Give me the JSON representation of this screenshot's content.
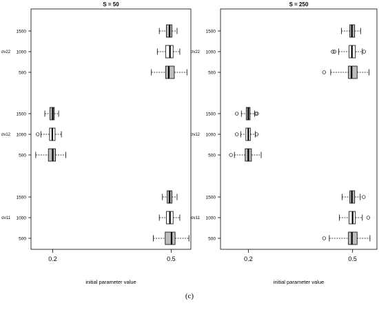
{
  "caption": "(c)",
  "chart_data": [
    {
      "type": "boxplot",
      "title": "S = 50",
      "xlabel": "initial parameter value",
      "xticks": [
        0.2,
        0.5
      ],
      "xlim": [
        0.145,
        0.55
      ],
      "groups": [
        {
          "label": "σv22",
          "rows": [
            {
              "n": "1500",
              "fill": "#bdbdbd",
              "whisker_low": 0.47,
              "q1": 0.488,
              "median": 0.496,
              "q3": 0.502,
              "whisker_high": 0.515,
              "outliers": []
            },
            {
              "n": "1000",
              "fill": "#ffffff",
              "whisker_low": 0.465,
              "q1": 0.486,
              "median": 0.497,
              "q3": 0.505,
              "whisker_high": 0.522,
              "outliers": []
            },
            {
              "n": "500",
              "fill": "#bdbdbd",
              "whisker_low": 0.45,
              "q1": 0.486,
              "median": 0.494,
              "q3": 0.508,
              "whisker_high": 0.54,
              "outliers": []
            }
          ]
        },
        {
          "label": "σv12",
          "rows": [
            {
              "n": "1500",
              "fill": "#bdbdbd",
              "whisker_low": 0.18,
              "q1": 0.193,
              "median": 0.2,
              "q3": 0.204,
              "whisker_high": 0.215,
              "outliers": []
            },
            {
              "n": "1000",
              "fill": "#ffffff",
              "whisker_low": 0.17,
              "q1": 0.192,
              "median": 0.199,
              "q3": 0.206,
              "whisker_high": 0.222,
              "outliers": [
                0.162
              ]
            },
            {
              "n": "500",
              "fill": "#bdbdbd",
              "whisker_low": 0.157,
              "q1": 0.189,
              "median": 0.2,
              "q3": 0.207,
              "whisker_high": 0.233,
              "outliers": []
            }
          ]
        },
        {
          "label": "σv11",
          "rows": [
            {
              "n": "1500",
              "fill": "#bdbdbd",
              "whisker_low": 0.478,
              "q1": 0.49,
              "median": 0.496,
              "q3": 0.502,
              "whisker_high": 0.515,
              "outliers": []
            },
            {
              "n": "1000",
              "fill": "#ffffff",
              "whisker_low": 0.47,
              "q1": 0.488,
              "median": 0.497,
              "q3": 0.505,
              "whisker_high": 0.522,
              "outliers": []
            },
            {
              "n": "500",
              "fill": "#bdbdbd",
              "whisker_low": 0.455,
              "q1": 0.485,
              "median": 0.501,
              "q3": 0.51,
              "whisker_high": 0.545,
              "outliers": []
            }
          ]
        }
      ]
    },
    {
      "type": "boxplot",
      "title": "S = 250",
      "xlabel": "initial parameter value",
      "xticks": [
        0.2,
        0.5
      ],
      "xlim": [
        0.12,
        0.57
      ],
      "groups": [
        {
          "label": "σv22",
          "rows": [
            {
              "n": "1500",
              "fill": "#bdbdbd",
              "whisker_low": 0.468,
              "q1": 0.492,
              "median": 0.498,
              "q3": 0.506,
              "whisker_high": 0.523,
              "outliers": []
            },
            {
              "n": "1000",
              "fill": "#ffffff",
              "whisker_low": 0.46,
              "q1": 0.49,
              "median": 0.498,
              "q3": 0.508,
              "whisker_high": 0.528,
              "outliers": [
                0.443,
                0.448,
                0.533
              ]
            },
            {
              "n": "500",
              "fill": "#bdbdbd",
              "whisker_low": 0.437,
              "q1": 0.488,
              "median": 0.497,
              "q3": 0.513,
              "whisker_high": 0.547,
              "outliers": [
                0.418
              ]
            }
          ]
        },
        {
          "label": "σv12",
          "rows": [
            {
              "n": "1500",
              "fill": "#bdbdbd",
              "whisker_low": 0.18,
              "q1": 0.194,
              "median": 0.2,
              "q3": 0.205,
              "whisker_high": 0.218,
              "outliers": [
                0.167,
                0.222,
                0.225
              ]
            },
            {
              "n": "1000",
              "fill": "#ffffff",
              "whisker_low": 0.178,
              "q1": 0.193,
              "median": 0.2,
              "q3": 0.206,
              "whisker_high": 0.22,
              "outliers": [
                0.167,
                0.224
              ]
            },
            {
              "n": "500",
              "fill": "#bdbdbd",
              "whisker_low": 0.16,
              "q1": 0.191,
              "median": 0.2,
              "q3": 0.209,
              "whisker_high": 0.237,
              "outliers": [
                0.15
              ]
            }
          ]
        },
        {
          "label": "σv11",
          "rows": [
            {
              "n": "1500",
              "fill": "#bdbdbd",
              "whisker_low": 0.47,
              "q1": 0.492,
              "median": 0.498,
              "q3": 0.506,
              "whisker_high": 0.522,
              "outliers": [
                0.532
              ]
            },
            {
              "n": "1000",
              "fill": "#ffffff",
              "whisker_low": 0.462,
              "q1": 0.49,
              "median": 0.5,
              "q3": 0.508,
              "whisker_high": 0.528,
              "outliers": [
                0.545
              ]
            },
            {
              "n": "500",
              "fill": "#bdbdbd",
              "whisker_low": 0.433,
              "q1": 0.488,
              "median": 0.498,
              "q3": 0.513,
              "whisker_high": 0.55,
              "outliers": [
                0.418
              ]
            }
          ]
        }
      ]
    }
  ]
}
